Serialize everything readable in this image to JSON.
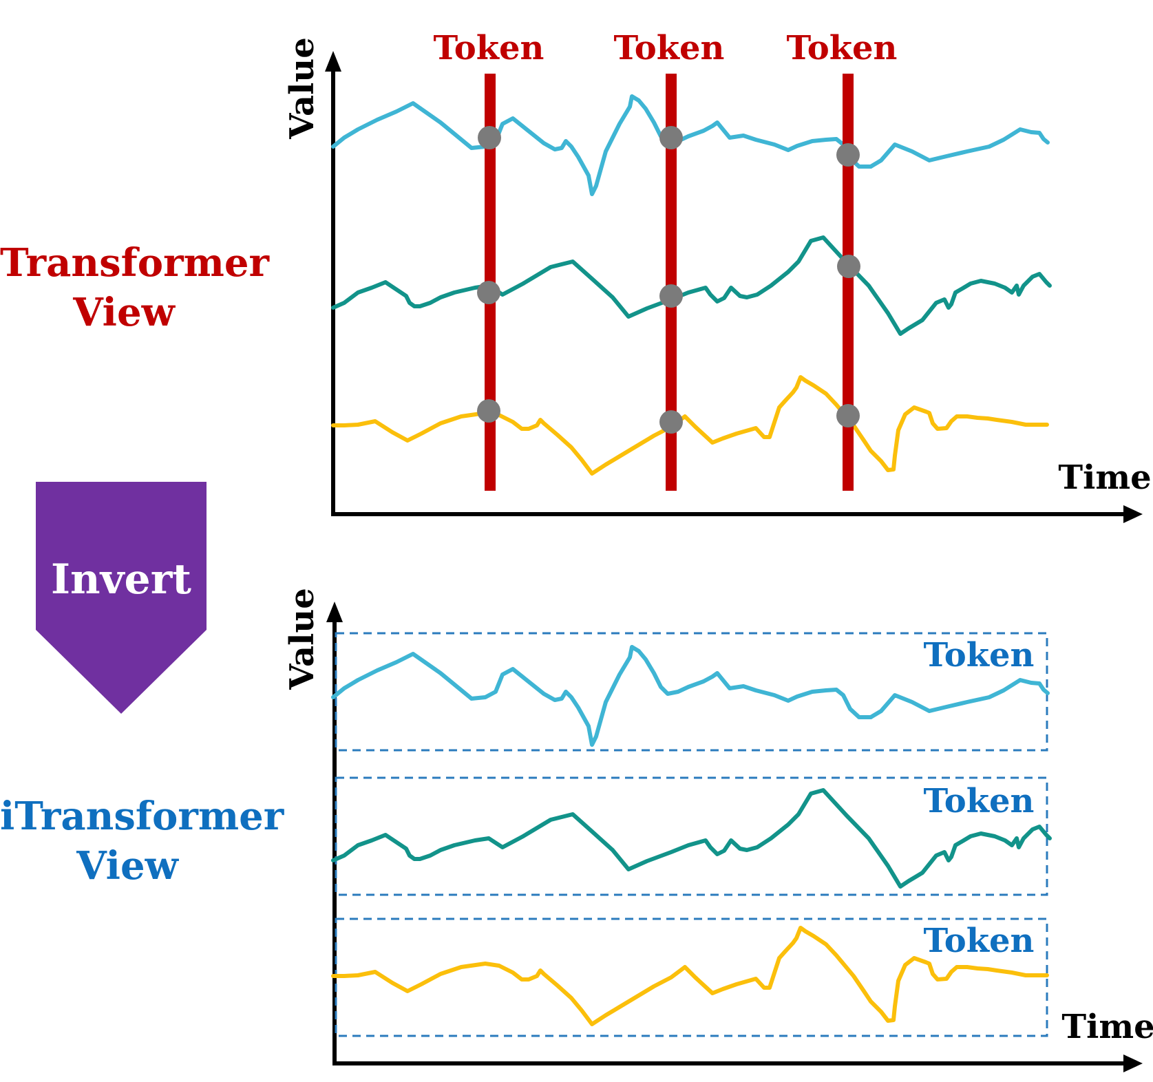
{
  "colors": {
    "transformer_red": "#c00000",
    "itransformer_blue": "#0f6fbf",
    "invert_purple": "#7030a0",
    "series_light_blue": "#3fb5d4",
    "series_teal": "#12938a",
    "series_yellow": "#fbbf0b",
    "token_dot_gray": "#7b7b7b",
    "axis_black": "#000000"
  },
  "labels": {
    "transformer_view": "Transformer\nView",
    "itransformer_view": "iTransformer\nView",
    "invert": "Invert"
  },
  "top_plot": {
    "y_axis_label": "Value",
    "x_axis_label": "Time",
    "token_labels": [
      "Token",
      "Token",
      "Token"
    ]
  },
  "bottom_plot": {
    "y_axis_label": "Value",
    "x_axis_label": "Time",
    "token_labels": [
      "Token",
      "Token",
      "Token"
    ]
  },
  "icons": {
    "invert_arrow": "down-pentagon-arrow",
    "axis_arrow": "triangle-arrowhead",
    "token_marker": "filled-circle"
  }
}
